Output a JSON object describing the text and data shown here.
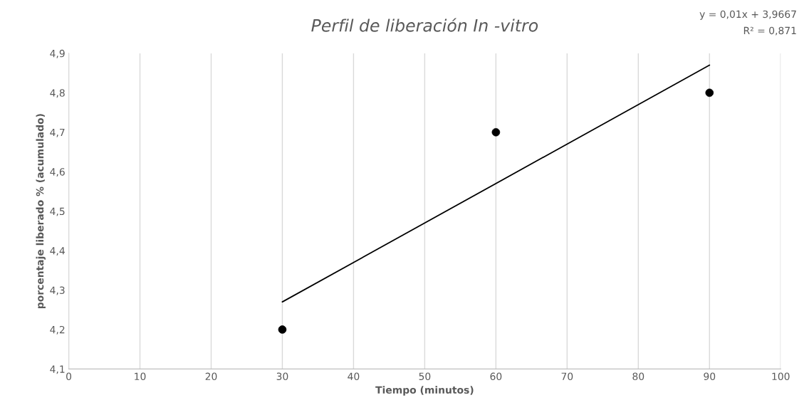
{
  "chart_data": {
    "type": "scatter",
    "title": "Perfil de liberación In -vitro",
    "xlabel": "Tiempo (minutos)",
    "ylabel": "porcentaje liberado % (acumulado)",
    "annotations": [
      "y = 0,01x + 3,9667",
      "R² = 0,871"
    ],
    "series": [
      {
        "color": "#000000",
        "x": [
          30,
          60,
          90
        ],
        "values": [
          4.2,
          4.7,
          4.8
        ],
        "marker": "circle"
      },
      {
        "type": "line",
        "color": "#000000",
        "x": [
          30,
          90
        ],
        "values": [
          4.27,
          4.87
        ],
        "marker": "none",
        "line_style": "solid"
      }
    ],
    "xlim": [
      0,
      100
    ],
    "xticks": [
      0,
      10,
      20,
      30,
      40,
      50,
      60,
      70,
      80,
      90,
      100
    ],
    "ylim": [
      4.1,
      4.9
    ],
    "yticks": [
      {
        "value": 4.1,
        "label": "4,1"
      },
      {
        "value": 4.2,
        "label": "4,2"
      },
      {
        "value": 4.3,
        "label": "4,3"
      },
      {
        "value": 4.4,
        "label": "4,4"
      },
      {
        "value": 4.5,
        "label": "4,5"
      },
      {
        "value": 4.6,
        "label": "4,6"
      },
      {
        "value": 4.7,
        "label": "4,7"
      },
      {
        "value": 4.8,
        "label": "4,8"
      },
      {
        "value": 4.9,
        "label": "4,9"
      }
    ],
    "grid": "x",
    "legend": false
  }
}
